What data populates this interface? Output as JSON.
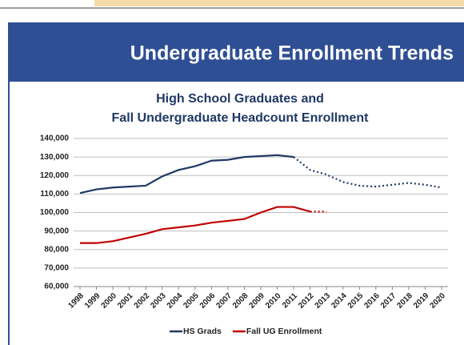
{
  "header": {
    "title": "Undergraduate Enrollment Trends"
  },
  "chart_data": {
    "type": "line",
    "title": [
      "High School Graduates and",
      "Fall Undergraduate Headcount Enrollment"
    ],
    "categories": [
      "1998",
      "1999",
      "2000",
      "2001",
      "2002",
      "2003",
      "2004",
      "2005",
      "2006",
      "2007",
      "2008",
      "2009",
      "2010",
      "2011",
      "2012",
      "2013",
      "2014",
      "2015",
      "2016",
      "2017",
      "2018",
      "2019",
      "2020"
    ],
    "series": [
      {
        "name": "HS Grads",
        "color": "#1f3864",
        "projected_from": "2011",
        "values": [
          110500,
          112500,
          113500,
          114000,
          114500,
          119500,
          123000,
          125000,
          128000,
          128500,
          130000,
          130500,
          131000,
          130000,
          123000,
          120500,
          116500,
          114500,
          114000,
          115000,
          116000,
          115000,
          113500
        ]
      },
      {
        "name": "Fall UG Enrollment",
        "color": "#c00000",
        "projected_from": "2012",
        "values": [
          83500,
          83500,
          84500,
          86500,
          88500,
          91000,
          92000,
          93000,
          94500,
          95500,
          96500,
          100000,
          103000,
          103000,
          100500,
          100500,
          null,
          null,
          null,
          null,
          null,
          null,
          null
        ]
      }
    ],
    "ylim": [
      60000,
      140000
    ],
    "yticks": [
      {
        "value": 60000,
        "label": "60,000"
      },
      {
        "value": 70000,
        "label": "70,000"
      },
      {
        "value": 80000,
        "label": "80,000"
      },
      {
        "value": 90000,
        "label": "90,000"
      },
      {
        "value": 100000,
        "label": "100,000"
      },
      {
        "value": 110000,
        "label": "110,000"
      },
      {
        "value": 120000,
        "label": "120,000"
      },
      {
        "value": 130000,
        "label": "130,000"
      },
      {
        "value": 140000,
        "label": "140,000"
      }
    ],
    "grid": true,
    "legend": "bottom"
  }
}
